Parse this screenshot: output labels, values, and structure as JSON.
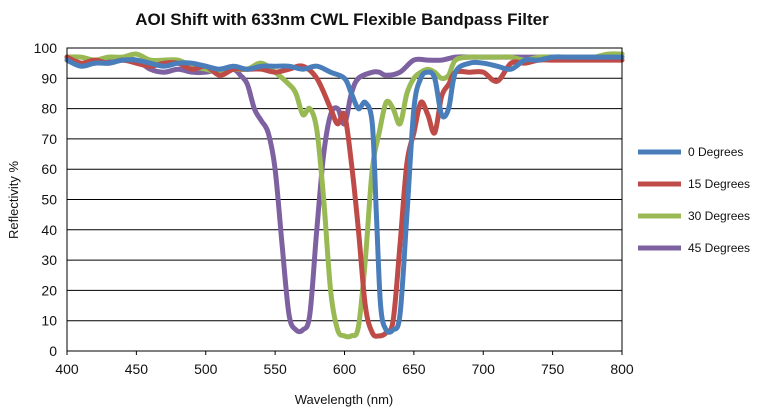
{
  "chart_data": {
    "type": "line",
    "title": "AOI Shift with 633nm CWL Flexible Bandpass Filter",
    "xlabel": "Wavelength (nm)",
    "ylabel": "Reflectivity %",
    "xlim": [
      400,
      800
    ],
    "ylim": [
      0,
      100
    ],
    "x_ticks": [
      400,
      450,
      500,
      550,
      600,
      650,
      700,
      750,
      800
    ],
    "y_ticks": [
      0,
      10,
      20,
      30,
      40,
      50,
      60,
      70,
      80,
      90,
      100
    ],
    "grid": "horizontal",
    "legend_position": "right",
    "series": [
      {
        "name": "0 Degrees",
        "color": "#4a7ebb",
        "points": [
          [
            400,
            96
          ],
          [
            410,
            94
          ],
          [
            420,
            95
          ],
          [
            430,
            95
          ],
          [
            440,
            96
          ],
          [
            450,
            96
          ],
          [
            460,
            95
          ],
          [
            470,
            94
          ],
          [
            480,
            95
          ],
          [
            490,
            95
          ],
          [
            500,
            94
          ],
          [
            510,
            93
          ],
          [
            520,
            94
          ],
          [
            530,
            93
          ],
          [
            540,
            94
          ],
          [
            550,
            94
          ],
          [
            560,
            94
          ],
          [
            570,
            93
          ],
          [
            580,
            94
          ],
          [
            590,
            92
          ],
          [
            600,
            90
          ],
          [
            605,
            85
          ],
          [
            610,
            80
          ],
          [
            615,
            82
          ],
          [
            620,
            75
          ],
          [
            623,
            45
          ],
          [
            626,
            15
          ],
          [
            630,
            7
          ],
          [
            635,
            7
          ],
          [
            640,
            12
          ],
          [
            645,
            45
          ],
          [
            650,
            80
          ],
          [
            655,
            90
          ],
          [
            660,
            92
          ],
          [
            665,
            90
          ],
          [
            670,
            78
          ],
          [
            675,
            80
          ],
          [
            680,
            92
          ],
          [
            690,
            95
          ],
          [
            700,
            95
          ],
          [
            710,
            94
          ],
          [
            720,
            93
          ],
          [
            730,
            96
          ],
          [
            740,
            96
          ],
          [
            750,
            97
          ],
          [
            760,
            97
          ],
          [
            770,
            97
          ],
          [
            780,
            97
          ],
          [
            790,
            97
          ],
          [
            800,
            97
          ]
        ]
      },
      {
        "name": "15 Degrees",
        "color": "#be4b48",
        "points": [
          [
            400,
            97
          ],
          [
            410,
            95
          ],
          [
            420,
            96
          ],
          [
            430,
            95
          ],
          [
            440,
            96
          ],
          [
            450,
            95
          ],
          [
            460,
            94
          ],
          [
            470,
            95
          ],
          [
            480,
            95
          ],
          [
            490,
            93
          ],
          [
            500,
            94
          ],
          [
            510,
            91
          ],
          [
            520,
            93
          ],
          [
            530,
            93
          ],
          [
            540,
            93
          ],
          [
            550,
            92
          ],
          [
            560,
            93
          ],
          [
            570,
            94
          ],
          [
            580,
            90
          ],
          [
            590,
            80
          ],
          [
            595,
            75
          ],
          [
            600,
            78
          ],
          [
            605,
            62
          ],
          [
            610,
            40
          ],
          [
            615,
            15
          ],
          [
            620,
            6
          ],
          [
            625,
            5
          ],
          [
            630,
            6
          ],
          [
            635,
            10
          ],
          [
            640,
            35
          ],
          [
            645,
            62
          ],
          [
            650,
            72
          ],
          [
            655,
            82
          ],
          [
            660,
            78
          ],
          [
            665,
            72
          ],
          [
            670,
            84
          ],
          [
            675,
            88
          ],
          [
            680,
            92
          ],
          [
            690,
            92
          ],
          [
            700,
            92
          ],
          [
            710,
            89
          ],
          [
            720,
            95
          ],
          [
            730,
            95
          ],
          [
            740,
            96
          ],
          [
            750,
            96
          ],
          [
            760,
            96
          ],
          [
            770,
            96
          ],
          [
            780,
            96
          ],
          [
            790,
            96
          ],
          [
            800,
            96
          ]
        ]
      },
      {
        "name": "30 Degrees",
        "color": "#98b954",
        "points": [
          [
            400,
            97
          ],
          [
            410,
            97
          ],
          [
            420,
            96
          ],
          [
            430,
            97
          ],
          [
            440,
            97
          ],
          [
            450,
            98
          ],
          [
            460,
            96
          ],
          [
            470,
            96
          ],
          [
            480,
            96
          ],
          [
            490,
            94
          ],
          [
            500,
            93
          ],
          [
            510,
            92
          ],
          [
            520,
            93
          ],
          [
            530,
            93
          ],
          [
            540,
            95
          ],
          [
            550,
            92
          ],
          [
            560,
            88
          ],
          [
            565,
            85
          ],
          [
            570,
            78
          ],
          [
            575,
            80
          ],
          [
            580,
            73
          ],
          [
            585,
            50
          ],
          [
            590,
            20
          ],
          [
            595,
            7
          ],
          [
            600,
            5
          ],
          [
            605,
            5
          ],
          [
            610,
            8
          ],
          [
            615,
            30
          ],
          [
            620,
            60
          ],
          [
            625,
            72
          ],
          [
            630,
            82
          ],
          [
            635,
            80
          ],
          [
            640,
            75
          ],
          [
            645,
            85
          ],
          [
            650,
            90
          ],
          [
            655,
            92
          ],
          [
            660,
            93
          ],
          [
            665,
            92
          ],
          [
            670,
            90
          ],
          [
            675,
            91
          ],
          [
            680,
            96
          ],
          [
            690,
            97
          ],
          [
            700,
            97
          ],
          [
            710,
            97
          ],
          [
            720,
            97
          ],
          [
            730,
            96
          ],
          [
            740,
            97
          ],
          [
            750,
            97
          ],
          [
            760,
            97
          ],
          [
            770,
            97
          ],
          [
            780,
            97
          ],
          [
            790,
            98
          ],
          [
            800,
            98
          ]
        ]
      },
      {
        "name": "45 Degrees",
        "color": "#7e61a0",
        "points": [
          [
            400,
            97
          ],
          [
            410,
            95
          ],
          [
            420,
            95
          ],
          [
            430,
            96
          ],
          [
            440,
            96
          ],
          [
            450,
            96
          ],
          [
            460,
            93
          ],
          [
            470,
            92
          ],
          [
            480,
            93
          ],
          [
            490,
            92
          ],
          [
            500,
            92
          ],
          [
            510,
            93
          ],
          [
            520,
            93
          ],
          [
            525,
            91
          ],
          [
            530,
            88
          ],
          [
            535,
            80
          ],
          [
            540,
            76
          ],
          [
            545,
            72
          ],
          [
            550,
            60
          ],
          [
            555,
            35
          ],
          [
            560,
            12
          ],
          [
            565,
            7
          ],
          [
            570,
            7
          ],
          [
            575,
            12
          ],
          [
            580,
            40
          ],
          [
            585,
            65
          ],
          [
            590,
            78
          ],
          [
            595,
            80
          ],
          [
            600,
            75
          ],
          [
            605,
            85
          ],
          [
            610,
            90
          ],
          [
            620,
            92
          ],
          [
            625,
            92
          ],
          [
            630,
            91
          ],
          [
            640,
            92
          ],
          [
            650,
            96
          ],
          [
            660,
            96
          ],
          [
            670,
            96
          ],
          [
            680,
            97
          ],
          [
            690,
            97
          ],
          [
            700,
            97
          ],
          [
            710,
            97
          ],
          [
            720,
            97
          ],
          [
            730,
            97
          ],
          [
            740,
            97
          ],
          [
            750,
            97
          ],
          [
            760,
            97
          ],
          [
            770,
            97
          ],
          [
            780,
            97
          ],
          [
            790,
            97
          ],
          [
            800,
            98
          ]
        ]
      }
    ]
  }
}
